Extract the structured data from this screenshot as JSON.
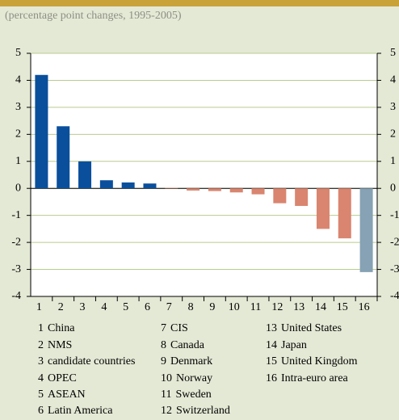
{
  "chart_data": {
    "type": "bar",
    "subtitle": "(percentage point changes, 1995-2005)",
    "categories": [
      "1",
      "2",
      "3",
      "4",
      "5",
      "6",
      "7",
      "8",
      "9",
      "10",
      "11",
      "12",
      "13",
      "14",
      "15",
      "16"
    ],
    "category_names": [
      "China",
      "NMS",
      "candidate countries",
      "OPEC",
      "ASEAN",
      "Latin America",
      "CIS",
      "Canada",
      "Denmark",
      "Norway",
      "Sweden",
      "Switzerland",
      "United States",
      "Japan",
      "United Kingdom",
      "Intra-euro area"
    ],
    "values": [
      4.2,
      2.3,
      1.0,
      0.3,
      0.22,
      0.18,
      0.02,
      -0.08,
      -0.1,
      -0.15,
      -0.22,
      -0.55,
      -0.65,
      -1.5,
      -1.85,
      -3.1
    ],
    "colors": [
      "#0a4f9c",
      "#0a4f9c",
      "#0a4f9c",
      "#0a4f9c",
      "#0a4f9c",
      "#0a4f9c",
      "#d98570",
      "#d98570",
      "#d98570",
      "#d98570",
      "#d98570",
      "#d98570",
      "#d98570",
      "#d98570",
      "#d98570",
      "#86a2b4"
    ],
    "ylim": [
      -4,
      5
    ],
    "yticks": [
      5,
      4,
      3,
      2,
      1,
      0,
      -1,
      -2,
      -3,
      -4
    ],
    "grid": true
  }
}
